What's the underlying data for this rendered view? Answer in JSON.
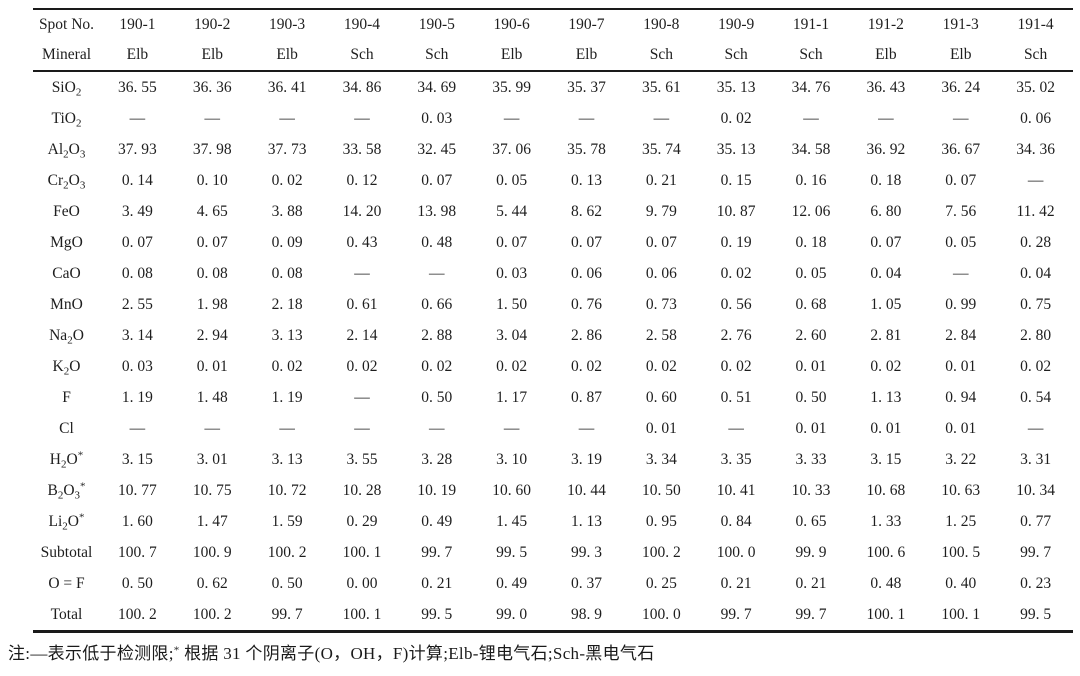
{
  "page": {
    "background": "#ffffff",
    "text_color": "#1e1e1e",
    "rule_color": "#1a1a1a"
  },
  "chart_data": {
    "type": "table",
    "header": {
      "spot_label": "Spot No.",
      "mineral_label": "Mineral",
      "spots": [
        "190-1",
        "190-2",
        "190-3",
        "190-4",
        "190-5",
        "190-6",
        "190-7",
        "190-8",
        "190-9",
        "191-1",
        "191-2",
        "191-3",
        "191-4"
      ],
      "minerals": [
        "Elb",
        "Elb",
        "Elb",
        "Sch",
        "Sch",
        "Elb",
        "Elb",
        "Sch",
        "Sch",
        "Sch",
        "Elb",
        "Elb",
        "Sch"
      ]
    },
    "rows": [
      {
        "label": "SiO_2",
        "values": [
          "36. 55",
          "36. 36",
          "36. 41",
          "34. 86",
          "34. 69",
          "35. 99",
          "35. 37",
          "35. 61",
          "35. 13",
          "34. 76",
          "36. 43",
          "36. 24",
          "35. 02"
        ]
      },
      {
        "label": "TiO_2",
        "values": [
          "—",
          "—",
          "—",
          "—",
          "0. 03",
          "—",
          "—",
          "—",
          "0. 02",
          "—",
          "—",
          "—",
          "0. 06"
        ]
      },
      {
        "label": "Al_2O_3",
        "values": [
          "37. 93",
          "37. 98",
          "37. 73",
          "33. 58",
          "32. 45",
          "37. 06",
          "35. 78",
          "35. 74",
          "35. 13",
          "34. 58",
          "36. 92",
          "36. 67",
          "34. 36"
        ]
      },
      {
        "label": "Cr_2O_3",
        "values": [
          "0. 14",
          "0. 10",
          "0. 02",
          "0. 12",
          "0. 07",
          "0. 05",
          "0. 13",
          "0. 21",
          "0. 15",
          "0. 16",
          "0. 18",
          "0. 07",
          "—"
        ]
      },
      {
        "label": "FeO",
        "values": [
          "3. 49",
          "4. 65",
          "3. 88",
          "14. 20",
          "13. 98",
          "5. 44",
          "8. 62",
          "9. 79",
          "10. 87",
          "12. 06",
          "6. 80",
          "7. 56",
          "11. 42"
        ]
      },
      {
        "label": "MgO",
        "values": [
          "0. 07",
          "0. 07",
          "0. 09",
          "0. 43",
          "0. 48",
          "0. 07",
          "0. 07",
          "0. 07",
          "0. 19",
          "0. 18",
          "0. 07",
          "0. 05",
          "0. 28"
        ]
      },
      {
        "label": "CaO",
        "values": [
          "0. 08",
          "0. 08",
          "0. 08",
          "—",
          "—",
          "0. 03",
          "0. 06",
          "0. 06",
          "0. 02",
          "0. 05",
          "0. 04",
          "—",
          "0. 04"
        ]
      },
      {
        "label": "MnO",
        "values": [
          "2. 55",
          "1. 98",
          "2. 18",
          "0. 61",
          "0. 66",
          "1. 50",
          "0. 76",
          "0. 73",
          "0. 56",
          "0. 68",
          "1. 05",
          "0. 99",
          "0. 75"
        ]
      },
      {
        "label": "Na_2O",
        "values": [
          "3. 14",
          "2. 94",
          "3. 13",
          "2. 14",
          "2. 88",
          "3. 04",
          "2. 86",
          "2. 58",
          "2. 76",
          "2. 60",
          "2. 81",
          "2. 84",
          "2. 80"
        ]
      },
      {
        "label": "K_2O",
        "values": [
          "0. 03",
          "0. 01",
          "0. 02",
          "0. 02",
          "0. 02",
          "0. 02",
          "0. 02",
          "0. 02",
          "0. 02",
          "0. 01",
          "0. 02",
          "0. 01",
          "0. 02"
        ]
      },
      {
        "label": "F",
        "values": [
          "1. 19",
          "1. 48",
          "1. 19",
          "—",
          "0. 50",
          "1. 17",
          "0. 87",
          "0. 60",
          "0. 51",
          "0. 50",
          "1. 13",
          "0. 94",
          "0. 54"
        ]
      },
      {
        "label": "Cl",
        "values": [
          "—",
          "—",
          "—",
          "—",
          "—",
          "—",
          "—",
          "0. 01",
          "—",
          "0. 01",
          "0. 01",
          "0. 01",
          "—"
        ]
      },
      {
        "label": "H_2O^*",
        "values": [
          "3. 15",
          "3. 01",
          "3. 13",
          "3. 55",
          "3. 28",
          "3. 10",
          "3. 19",
          "3. 34",
          "3. 35",
          "3. 33",
          "3. 15",
          "3. 22",
          "3. 31"
        ]
      },
      {
        "label": "B_2O_3^*",
        "values": [
          "10. 77",
          "10. 75",
          "10. 72",
          "10. 28",
          "10. 19",
          "10. 60",
          "10. 44",
          "10. 50",
          "10. 41",
          "10. 33",
          "10. 68",
          "10. 63",
          "10. 34"
        ]
      },
      {
        "label": "Li_2O^*",
        "values": [
          "1. 60",
          "1. 47",
          "1. 59",
          "0. 29",
          "0. 49",
          "1. 45",
          "1. 13",
          "0. 95",
          "0. 84",
          "0. 65",
          "1. 33",
          "1. 25",
          "0. 77"
        ]
      },
      {
        "label": "Subtotal",
        "values": [
          "100. 7",
          "100. 9",
          "100. 2",
          "100. 1",
          "99. 7",
          "99. 5",
          "99. 3",
          "100. 2",
          "100. 0",
          "99. 9",
          "100. 6",
          "100. 5",
          "99. 7"
        ]
      },
      {
        "label": "O = F",
        "values": [
          "0. 50",
          "0. 62",
          "0. 50",
          "0. 00",
          "0. 21",
          "0. 49",
          "0. 37",
          "0. 25",
          "0. 21",
          "0. 21",
          "0. 48",
          "0. 40",
          "0. 23"
        ]
      },
      {
        "label": "Total",
        "values": [
          "100. 2",
          "100. 2",
          "99. 7",
          "100. 1",
          "99. 5",
          "99. 0",
          "98. 9",
          "100. 0",
          "99. 7",
          "99. 7",
          "100. 1",
          "100. 1",
          "99. 5"
        ]
      }
    ],
    "footnote": "注:—表示低于检测限;^* 根据 31 个阴离子(O，OH，F)计算;Elb-锂电气石;Sch-黑电气石",
    "legend": {
      "dash_meaning": "below detection limit",
      "Elb": "锂电气石",
      "Sch": "黑电气石"
    }
  }
}
